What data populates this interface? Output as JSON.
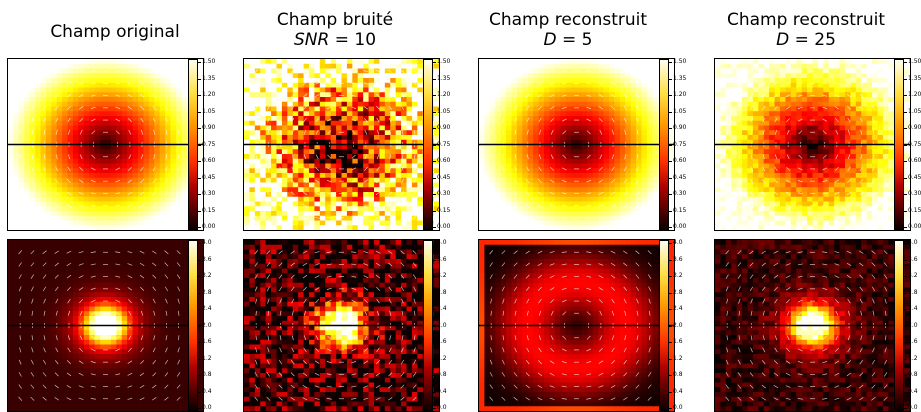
{
  "columns": [
    {
      "title": "Champ original",
      "subtitle_var": "",
      "subtitle_eq": "",
      "subtitle_val": ""
    },
    {
      "title": "Champ bruité",
      "subtitle_var": "SNR",
      "subtitle_eq": " = ",
      "subtitle_val": "10"
    },
    {
      "title": "Champ reconstruit",
      "subtitle_var": "D",
      "subtitle_eq": " = ",
      "subtitle_val": "5"
    },
    {
      "title": "Champ reconstruit",
      "subtitle_var": "D",
      "subtitle_eq": " = ",
      "subtitle_val": "25"
    }
  ],
  "colorbar_top": {
    "ticks": [
      "1.50",
      "1.35",
      "1.20",
      "1.05",
      "0.90",
      "0.75",
      "0.60",
      "0.45",
      "0.30",
      "0.15",
      "0.00"
    ]
  },
  "colorbar_bottom": {
    "ticks": [
      "4.0",
      "3.6",
      "3.2",
      "2.8",
      "2.4",
      "2.0",
      "1.6",
      "1.2",
      "0.8",
      "0.4",
      "0.0"
    ]
  },
  "colors": {
    "dark": "#1a0000",
    "red": "#e01000",
    "orange": "#ff7a00",
    "yellow": "#ffe070",
    "white": "#fffde8"
  },
  "chart_data": [
    {
      "type": "heatmap",
      "row": "top",
      "column": "Champ original",
      "colormap": "hot",
      "vmin": 0.0,
      "vmax": 1.5,
      "pattern": "radial-increasing",
      "noise": 0.0
    },
    {
      "type": "heatmap",
      "row": "top",
      "column": "Champ bruité SNR = 10",
      "colormap": "hot",
      "vmin": 0.0,
      "vmax": 1.5,
      "pattern": "radial-increasing",
      "noise": 0.35
    },
    {
      "type": "heatmap",
      "row": "top",
      "column": "Champ reconstruit D = 5",
      "colormap": "hot",
      "vmin": 0.0,
      "vmax": 1.5,
      "pattern": "radial-increasing",
      "noise": 0.0
    },
    {
      "type": "heatmap",
      "row": "top",
      "column": "Champ reconstruit D = 25",
      "colormap": "hot",
      "vmin": 0.0,
      "vmax": 1.5,
      "pattern": "radial-increasing",
      "noise": 0.08
    },
    {
      "type": "heatmap",
      "row": "bottom",
      "column": "Champ original",
      "colormap": "hot",
      "vmin": 0.0,
      "vmax": 4.0,
      "pattern": "central-peak",
      "noise": 0.0
    },
    {
      "type": "heatmap",
      "row": "bottom",
      "column": "Champ bruité SNR = 10",
      "colormap": "hot",
      "vmin": 0.0,
      "vmax": 4.0,
      "pattern": "central-peak",
      "noise": 0.25
    },
    {
      "type": "heatmap",
      "row": "bottom",
      "column": "Champ reconstruit D = 5",
      "colormap": "hot",
      "vmin": 0.0,
      "vmax": 4.0,
      "pattern": "ring",
      "noise": 0.0
    },
    {
      "type": "heatmap",
      "row": "bottom",
      "column": "Champ reconstruit D = 25",
      "colormap": "hot",
      "vmin": 0.0,
      "vmax": 4.0,
      "pattern": "central-peak",
      "noise": 0.08
    }
  ]
}
